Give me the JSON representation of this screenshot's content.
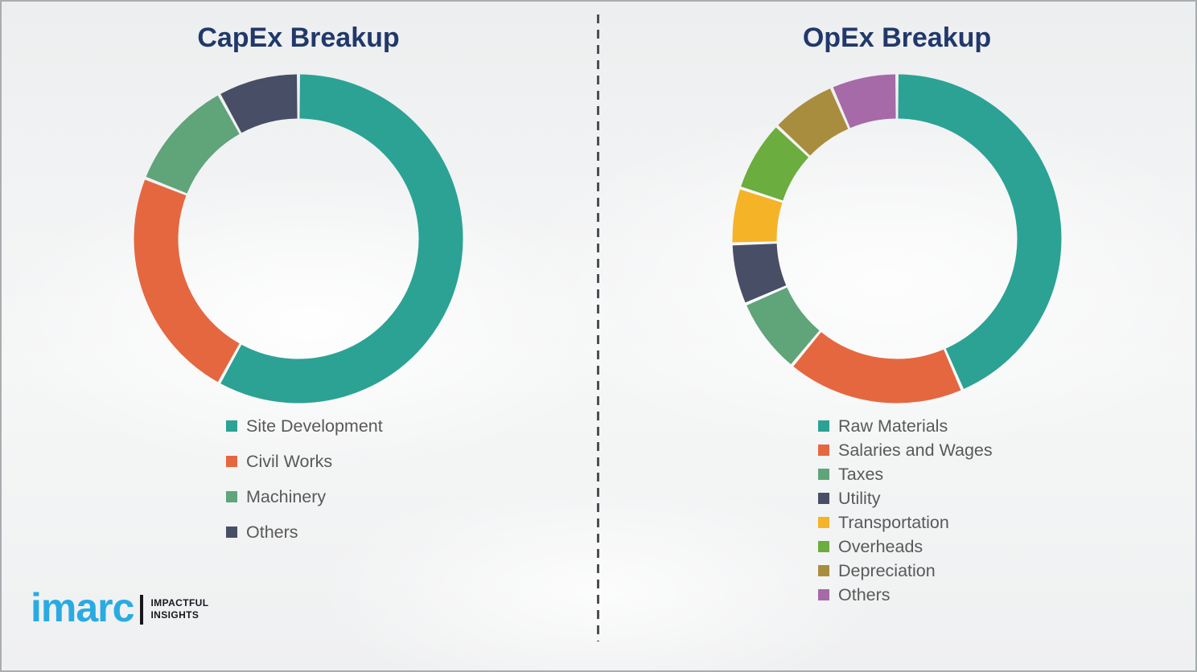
{
  "page": {
    "background_color": "#f1f2f3",
    "border_color": "#a9adb0"
  },
  "titles": {
    "left": "CapEx Breakup",
    "right": "OpEx Breakup"
  },
  "chart_data": [
    {
      "type": "pie",
      "variant": "donut",
      "title": "CapEx Breakup",
      "labels": [
        "Site Development",
        "Civil Works",
        "Machinery",
        "Others"
      ],
      "values": [
        58,
        23,
        11,
        8
      ],
      "colors": [
        "#2ba294",
        "#e56740",
        "#60a47a",
        "#494e67"
      ],
      "start_angle_deg": 0,
      "direction": "clockwise",
      "legend_position": "below-left",
      "data_labels_shown": false,
      "note": "values are percentages estimated from arc angles; no numbers printed on chart"
    },
    {
      "type": "pie",
      "variant": "donut",
      "title": "OpEx Breakup",
      "labels": [
        "Raw Materials",
        "Salaries and Wages",
        "Taxes",
        "Utility",
        "Transportation",
        "Overheads",
        "Depreciation",
        "Others"
      ],
      "values": [
        43.5,
        17.5,
        7.5,
        6,
        5.5,
        7,
        6.5,
        6.5
      ],
      "colors": [
        "#2ba294",
        "#e56740",
        "#60a47a",
        "#494e67",
        "#f5b328",
        "#6bad3e",
        "#a98d3e",
        "#a56aa7"
      ],
      "start_angle_deg": 0,
      "direction": "clockwise",
      "legend_position": "below-left",
      "data_labels_shown": false,
      "note": "values are percentages estimated from arc angles; no numbers printed on chart"
    }
  ],
  "title_color": "#21386b",
  "legend_text_color": "#595959",
  "logo": {
    "brand": "imarc",
    "brand_color": "#29abe2",
    "tagline_line1": "IMPACTFUL",
    "tagline_line2": "INSIGHTS"
  }
}
